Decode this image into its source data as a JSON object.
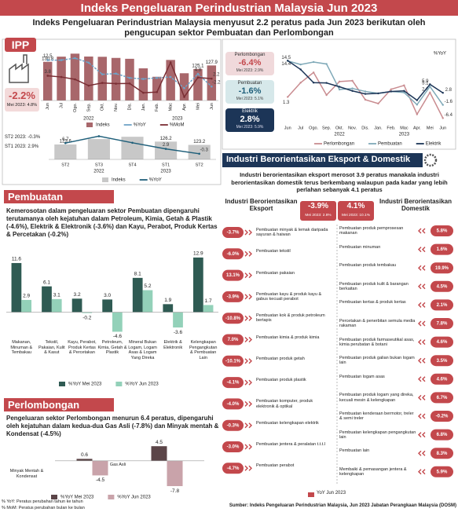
{
  "header": {
    "title": "Indeks Pengeluaran Perindustrian Malaysia Jun 2023",
    "subtitle": "Indeks Pengeluaran Perindustrian Malaysia menyusut 2.2 peratus pada Jun 2023 berikutan oleh pengucupan sektor Pembuatan dan Perlombongan"
  },
  "ipp": {
    "badge": "IPP",
    "value": "-2.2%",
    "previous": "Mei 2023: 4.8%"
  },
  "quarterly_notes": [
    "ST2 2023: -0.3%",
    "ST1 2023: 2.9%"
  ],
  "sectors": [
    {
      "name": "Perlombongan",
      "value": "-6.4%",
      "previous": "Mei 2023: 2.9%"
    },
    {
      "name": "Pembuatan",
      "value": "-1.6%",
      "previous": "Mei 2023: 5.1%"
    },
    {
      "name": "Elektrik",
      "value": "2.8%",
      "previous": "Mei 2023: 5.9%"
    }
  ],
  "pembuatan": {
    "title": "Pembuatan",
    "text": "Kemerosotan dalam pengeluaran sektor Pembuatan dipengaruhi terutamanya oleh kejatuhan dalam Petroleum, Kimia, Getah & Plastik (-4.6%), Elektrik & Elektronik (-3.6%) dan Kayu, Perabot, Produk Kertas & Percetakan (-0.2%)"
  },
  "perlombongan": {
    "title": "Perlombongan",
    "text": "Pengeluaran sektor Perlombongan menurun 6.4 peratus, dipengaruhi oleh kejatuhan dalam kedua-dua Gas Asli (-7.8%) dan Minyak mentah & Kondensat (-4.5%)"
  },
  "eksport_domestik": {
    "title": "Industri Berorientasikan Eksport & Domestik",
    "text": "Industri berorientasikan eksport merosot 3.9 peratus manakala industri berorientasikan domestik terus berkembang walaupun pada kadar yang lebih perlahan sebanyak 4.1 peratus",
    "legend": "YoY Jun 2023",
    "eksport": {
      "heading": "Industri Berorientasikan Eksport",
      "value": "-3.9%",
      "previous": "Mei 2023: 2.8%",
      "items": [
        {
          "label": "Pembuatan minyak & lemak daripada sayuran & haiwan",
          "value": "-3.7%"
        },
        {
          "label": "Pembuatan tekstil",
          "value": "-6.0%"
        },
        {
          "label": "Pembuatan pakaian",
          "value": "13.1%"
        },
        {
          "label": "Pembuatan kayu & produk kayu & gabus kecuali perabot",
          "value": "-3.9%"
        },
        {
          "label": "Pembuatan kok & produk petroleum bertapis",
          "value": "-10.8%"
        },
        {
          "label": "Pembuatan kimia & produk kimia",
          "value": "7.0%"
        },
        {
          "label": "Pembuatan produk getah",
          "value": "-10.1%"
        },
        {
          "label": "Pembuatan produk plastik",
          "value": "-4.1%"
        },
        {
          "label": "Pembuatan komputer, produk elektronik & optikal",
          "value": "-4.0%"
        },
        {
          "label": "Pembuatan kelengkapan elektrik",
          "value": "-0.3%"
        },
        {
          "label": "Pembuatan jentera & peralatan t.t.t.l",
          "value": "-3.0%"
        },
        {
          "label": "Pembuatan perabot",
          "value": "-4.7%"
        }
      ]
    },
    "domestik": {
      "heading": "Industri Berorientasikan Domestik",
      "value": "4.1%",
      "previous": "Mei 2023: 10.1%",
      "items": [
        {
          "label": "Pembuatan produk pemprosesan makanan",
          "value": "5.8%"
        },
        {
          "label": "Pembuatan minuman",
          "value": "1.6%"
        },
        {
          "label": "Pembuatan produk tembakau",
          "value": "19.9%"
        },
        {
          "label": "Pembuatan produk kulit & barangan berkaitan",
          "value": "4.5%"
        },
        {
          "label": "Pembuatan kertas & produk kertas",
          "value": "2.1%"
        },
        {
          "label": "Percetakan & penerbitan semula media rakaman",
          "value": "7.8%"
        },
        {
          "label": "Pembuatan produk farmaseutikal asas, kimia perubatan & botani",
          "value": "4.6%"
        },
        {
          "label": "Pembuatan produk galian bukan logam lain",
          "value": "3.5%"
        },
        {
          "label": "Pembuatan logam asas",
          "value": "4.6%"
        },
        {
          "label": "Pembuatan produk logam yang direka, kecuali mesin & kelengkapan",
          "value": "6.7%"
        },
        {
          "label": "Pembuatan kenderaan bermotor, treler & semi treler",
          "value": "-0.2%"
        },
        {
          "label": "Pembuatan kelengkapan pengangkutan lain",
          "value": "6.8%"
        },
        {
          "label": "Pembuatan lain",
          "value": "8.3%"
        },
        {
          "label": "Membaiki & pemasangan jentera & kelengkapan",
          "value": "5.9%"
        }
      ]
    }
  },
  "footer": {
    "notes": [
      "% YoY: Peratus perubahan tahun ke tahun",
      "% MoM: Peratus perubahan bulan ke bulan"
    ],
    "source": "Sumber: Indeks Pengeluaran Perindustrian Malaysia, Jun 2023 Jabatan Perangkaan Malaysia (DOSM)"
  },
  "chart_data": [
    {
      "type": "bar_line",
      "categories": [
        "Jun",
        "Jul",
        "Ogo.",
        "Sep.",
        "Okt.",
        "Nov.",
        "Dis.",
        "Jan.",
        "Feb.",
        "Mac",
        "Apr.",
        "Mei",
        "Jun"
      ],
      "year_labels": [
        "2022",
        "2023"
      ],
      "ylim": [
        100,
        140
      ],
      "y2lim": [
        -10,
        18
      ],
      "series": [
        {
          "name": "Indeks",
          "type": "bar",
          "color": "#a8676b",
          "values": [
            130.8,
            134.9,
            137.3,
            135.0,
            134.8,
            133.9,
            133.2,
            125.6,
            118.9,
            132.3,
            121.7,
            125.1,
            127.9
          ],
          "value_labels": [
            "130.8",
            null,
            null,
            null,
            null,
            null,
            null,
            null,
            null,
            null,
            null,
            "125.1",
            "127.9"
          ]
        },
        {
          "name": "%YoY",
          "type": "line",
          "axis": "y2",
          "color": "#6fa3c7",
          "values": [
            12.5,
            12.5,
            13.6,
            11.1,
            4.6,
            5.0,
            2.6,
            2.0,
            2.6,
            3.1,
            -3.1,
            4.8,
            -2.2
          ],
          "value_labels": [
            "12.5",
            null,
            null,
            null,
            null,
            null,
            null,
            null,
            null,
            null,
            null,
            "4.8",
            "-2.2"
          ]
        },
        {
          "name": "%MoM",
          "type": "line",
          "axis": "y2",
          "color": "#7a2e34",
          "values": [
            3.8,
            3.1,
            1.8,
            -1.7,
            -0.2,
            -0.6,
            -0.5,
            -5.7,
            -5.3,
            11.2,
            -8.0,
            2.8,
            2.2
          ],
          "value_labels": [
            "3.8",
            null,
            null,
            null,
            null,
            null,
            null,
            null,
            null,
            null,
            null,
            null,
            "2.2"
          ]
        }
      ]
    },
    {
      "type": "bar_line",
      "categories": [
        "ST2",
        "ST3",
        "ST4",
        "ST1",
        "ST2"
      ],
      "year_labels": [
        "2022",
        "2023"
      ],
      "ylim": [
        110,
        135
      ],
      "y2lim": [
        -4,
        14
      ],
      "series": [
        {
          "name": "Indeks",
          "type": "bar",
          "color": "#c8c8c8",
          "values": [
            123.6,
            128.5,
            130.6,
            126.2,
            123.2
          ],
          "value_labels": [
            "123.6",
            null,
            null,
            "126.2",
            "123.2"
          ]
        },
        {
          "name": "%YoY",
          "type": "line",
          "axis": "y2",
          "color": "#1f5f7a",
          "values": [
            6.7,
            11.2,
            6.9,
            2.9,
            -0.3
          ],
          "value_labels": [
            "6.7",
            null,
            null,
            "2.9",
            "-0.3"
          ]
        }
      ]
    },
    {
      "type": "line",
      "y_label": "%YoY",
      "categories": [
        "Jun",
        "Jul",
        "Ogo.",
        "Sep.",
        "Okt.",
        "Nov.",
        "Dis.",
        "Jan.",
        "Feb.",
        "Mac",
        "Apr.",
        "Mei",
        "Jun"
      ],
      "year_labels": [
        "2022",
        "2023"
      ],
      "ylim": [
        -8,
        16
      ],
      "series": [
        {
          "name": "Perlombongan",
          "color": "#c98c90",
          "values": [
            1.3,
            6.5,
            10.2,
            2.0,
            6.9,
            7.2,
            0.3,
            -1.1,
            4.1,
            5.5,
            -5.0,
            2.9,
            -6.4
          ],
          "value_labels": [
            "1.3",
            null,
            null,
            null,
            null,
            null,
            null,
            null,
            null,
            null,
            null,
            "2.9",
            "-6.4"
          ]
        },
        {
          "name": "Pembuatan",
          "color": "#7fa9b8",
          "values": [
            14.4,
            13.1,
            14.0,
            13.3,
            4.0,
            4.4,
            3.3,
            2.6,
            3.3,
            2.9,
            -1.5,
            5.1,
            -1.6
          ],
          "value_labels": [
            "14.4",
            null,
            null,
            null,
            null,
            null,
            null,
            null,
            null,
            null,
            null,
            "5.1",
            "-1.6"
          ]
        },
        {
          "name": "Elektrik",
          "color": "#1c3557",
          "values": [
            14.5,
            11.3,
            6.5,
            6.4,
            5.0,
            3.5,
            2.4,
            2.6,
            3.3,
            3.5,
            0.1,
            5.9,
            2.8
          ],
          "value_labels": [
            "14.5",
            null,
            null,
            null,
            null,
            null,
            null,
            null,
            null,
            null,
            null,
            "5.9",
            "2.8"
          ]
        }
      ]
    },
    {
      "type": "bar",
      "categories": [
        "Makanan, Minuman & Tembakau",
        "Tekstil, Pakaian, Kulit & Kasut",
        "Kayu, Perabot, Produk Kertas & Percetakan",
        "Petroleum, Kimia, Getah & Plastik",
        "Mineral Bukan Logam, Logam Asas & Logam Yang Direka",
        "Elektrik & Elektronik",
        "Kelengkapan Pengangkutan & Pembuatan Lain"
      ],
      "ylim": [
        -6,
        14
      ],
      "series": [
        {
          "name": "%YoY Mei 2023",
          "color": "#2f5b53",
          "values": [
            11.6,
            6.1,
            3.2,
            3.0,
            8.1,
            1.9,
            12.9
          ],
          "value_labels": [
            "11.6",
            "6.1",
            "3.2",
            "3.0",
            "8.1",
            "1.9",
            "12.9"
          ]
        },
        {
          "name": "%YoY Jun 2023",
          "color": "#93d1b9",
          "values": [
            2.9,
            3.1,
            -0.2,
            -4.6,
            5.2,
            -3.6,
            1.7
          ],
          "value_labels": [
            "2.9",
            "3.1",
            "-0.2",
            "-4.6",
            "5.2",
            "-3.6",
            "1.7"
          ]
        }
      ]
    },
    {
      "type": "bar",
      "categories": [
        "Minyak Mentah & Kondensat",
        "Gas Asli"
      ],
      "ylim": [
        -9,
        6
      ],
      "series": [
        {
          "name": "%YoY Mei 2023",
          "color": "#5b4548",
          "values": [
            0.6,
            4.5
          ],
          "value_labels": [
            "0.6",
            "4.5"
          ]
        },
        {
          "name": "%YoY Jun 2023",
          "color": "#c9a3aa",
          "values": [
            -4.5,
            -7.8
          ],
          "value_labels": [
            "-4.5",
            "-7.8"
          ]
        }
      ]
    }
  ]
}
